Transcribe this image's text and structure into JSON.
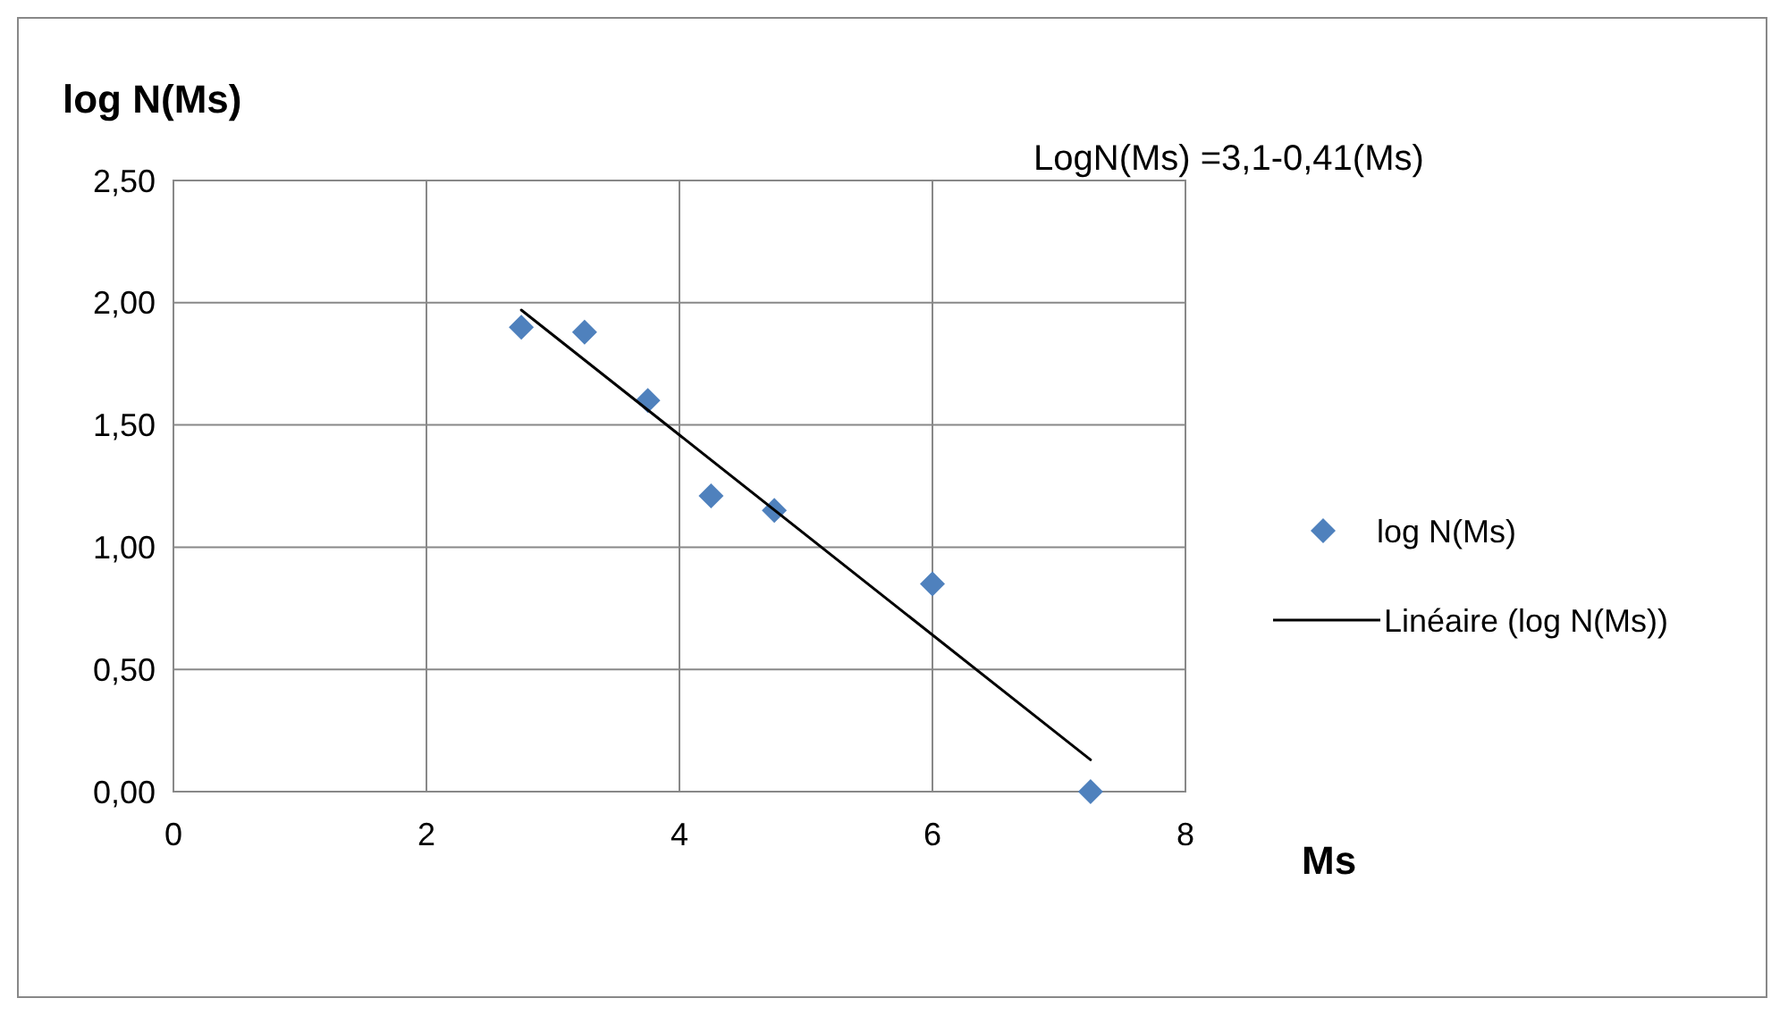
{
  "chart_data": {
    "type": "scatter",
    "ylabel": "log N(Ms)",
    "xlabel": "Ms",
    "annotations": [
      "LogN(Ms) =3,1-0,41(Ms)"
    ],
    "xlim": [
      0,
      8
    ],
    "xticks": [
      0,
      2,
      4,
      6,
      8
    ],
    "ylim": [
      0,
      2.5
    ],
    "yticks": [
      {
        "value": 0,
        "label": "0,00"
      },
      {
        "value": 0.5,
        "label": "0,50"
      },
      {
        "value": 1,
        "label": "1,00"
      },
      {
        "value": 1.5,
        "label": "1,50"
      },
      {
        "value": 2,
        "label": "2,00"
      },
      {
        "value": 2.5,
        "label": "2,50"
      }
    ],
    "grid": true,
    "legend": "right",
    "series": [
      {
        "name": "log N(Ms)",
        "marker": "diamond",
        "color": "#4f81bd",
        "x": [
          2.75,
          3.25,
          3.75,
          4.25,
          4.75,
          6,
          7.25
        ],
        "values": [
          1.9,
          1.88,
          1.6,
          1.21,
          1.15,
          0.85,
          0
        ]
      },
      {
        "name": "Linéaire (log N(Ms))",
        "type": "line",
        "color": "#000000",
        "x": [
          2.75,
          7.25
        ],
        "values": [
          1.97,
          0.13
        ]
      }
    ]
  }
}
